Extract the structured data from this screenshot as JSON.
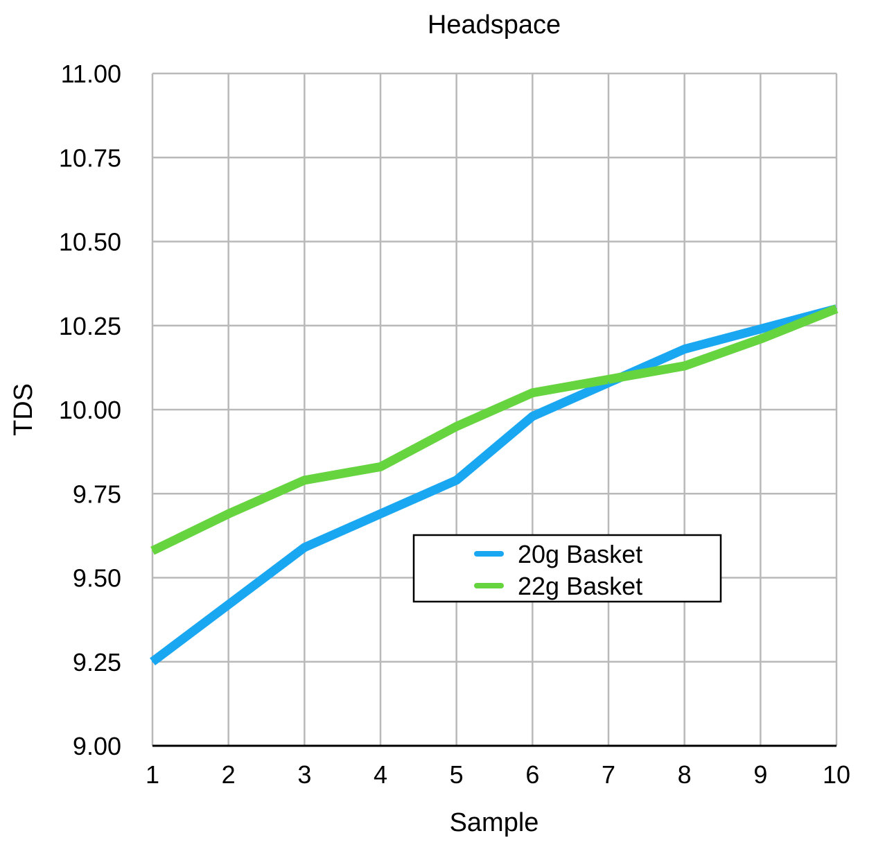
{
  "chart_data": {
    "type": "line",
    "title": "Headspace",
    "xlabel": "Sample",
    "ylabel": "TDS",
    "x": [
      1,
      2,
      3,
      4,
      5,
      6,
      7,
      8,
      9,
      10
    ],
    "x_tick_labels": [
      "1",
      "2",
      "3",
      "4",
      "5",
      "6",
      "7",
      "8",
      "9",
      "10"
    ],
    "ylim": [
      9.0,
      11.0
    ],
    "y_ticks": [
      9.0,
      9.25,
      9.5,
      9.75,
      10.0,
      10.25,
      10.5,
      10.75,
      11.0
    ],
    "y_tick_labels": [
      "9.00",
      "9.25",
      "9.50",
      "9.75",
      "10.00",
      "10.25",
      "10.50",
      "10.75",
      "11.00"
    ],
    "grid": true,
    "legend_position": "center-right",
    "series": [
      {
        "name": "20g Basket",
        "color": "#1aa7f2",
        "values": [
          9.25,
          9.42,
          9.59,
          9.69,
          9.79,
          9.98,
          10.08,
          10.18,
          10.24,
          10.3
        ]
      },
      {
        "name": "22g Basket",
        "color": "#66d43f",
        "values": [
          9.58,
          9.69,
          9.79,
          9.83,
          9.95,
          10.05,
          10.09,
          10.13,
          10.21,
          10.3
        ]
      }
    ]
  }
}
